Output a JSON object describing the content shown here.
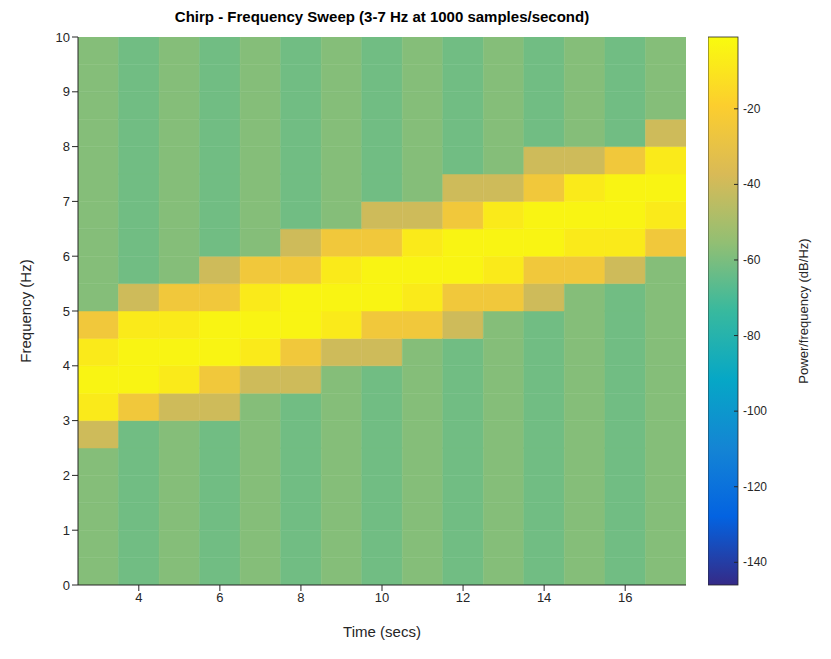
{
  "chart_data": {
    "type": "heatmap",
    "title": "Chirp - Frequency Sweep (3-7 Hz at 1000 samples/second)",
    "xlabel": "Time (secs)",
    "ylabel": "Frequency (Hz)",
    "xlim": [
      2.5,
      17.5
    ],
    "xticks": [
      4,
      6,
      8,
      10,
      12,
      14,
      16
    ],
    "ylim": [
      0,
      10
    ],
    "yticks": [
      0,
      1,
      2,
      3,
      4,
      5,
      6,
      7,
      8,
      9,
      10
    ],
    "colorbar": {
      "label": "Power/frequency (dB/Hz)",
      "range": [
        -146,
        -1
      ],
      "ticks": [
        -140,
        -120,
        -100,
        -80,
        -60,
        -40,
        -20
      ]
    },
    "cells": {
      "x": [
        3,
        4,
        5,
        6,
        7,
        8,
        9,
        10,
        11,
        12,
        13,
        14,
        15,
        16,
        17
      ],
      "y": [
        0.25,
        0.75,
        1.25,
        1.75,
        2.25,
        2.75,
        3.25,
        3.75,
        4.25,
        4.75,
        5.25,
        5.75,
        6.25,
        6.75,
        7.25,
        7.75,
        8.25,
        8.75,
        9.25,
        9.75
      ],
      "values": [
        [
          -58,
          -58,
          -58,
          -58,
          -58,
          -40,
          -8,
          -4,
          -8,
          -25,
          -58,
          -58,
          -58,
          -58,
          -58,
          -58,
          -58,
          -58,
          -58,
          -58
        ],
        [
          -62,
          -62,
          -62,
          -62,
          -62,
          -62,
          -25,
          -4,
          -4,
          -8,
          -40,
          -62,
          -62,
          -62,
          -62,
          -62,
          -62,
          -62,
          -62,
          -62
        ],
        [
          -58,
          -58,
          -58,
          -58,
          -58,
          -58,
          -40,
          -8,
          -4,
          -8,
          -25,
          -58,
          -58,
          -58,
          -58,
          -58,
          -58,
          -58,
          -58,
          -58
        ],
        [
          -62,
          -62,
          -62,
          -62,
          -62,
          -62,
          -40,
          -25,
          -4,
          -4,
          -25,
          -40,
          -62,
          -62,
          -62,
          -62,
          -62,
          -62,
          -62,
          -62
        ],
        [
          -58,
          -58,
          -58,
          -58,
          -58,
          -58,
          -58,
          -40,
          -8,
          -4,
          -8,
          -25,
          -58,
          -58,
          -58,
          -58,
          -58,
          -58,
          -58,
          -58
        ],
        [
          -62,
          -62,
          -62,
          -62,
          -62,
          -62,
          -62,
          -40,
          -25,
          -4,
          -4,
          -25,
          -40,
          -62,
          -62,
          -62,
          -62,
          -62,
          -62,
          -62
        ],
        [
          -58,
          -58,
          -58,
          -58,
          -58,
          -58,
          -58,
          -58,
          -40,
          -8,
          -4,
          -8,
          -25,
          -58,
          -58,
          -58,
          -58,
          -58,
          -58,
          -58
        ],
        [
          -62,
          -62,
          -62,
          -62,
          -62,
          -62,
          -62,
          -62,
          -40,
          -25,
          -4,
          -4,
          -25,
          -40,
          -62,
          -62,
          -62,
          -62,
          -62,
          -62
        ],
        [
          -58,
          -58,
          -58,
          -58,
          -58,
          -58,
          -58,
          -58,
          -58,
          -25,
          -8,
          -4,
          -8,
          -40,
          -58,
          -58,
          -58,
          -58,
          -58,
          -58
        ],
        [
          -62,
          -62,
          -62,
          -62,
          -62,
          -62,
          -62,
          -62,
          -62,
          -40,
          -25,
          -4,
          -4,
          -25,
          -40,
          -62,
          -62,
          -62,
          -62,
          -62
        ],
        [
          -58,
          -58,
          -58,
          -58,
          -58,
          -58,
          -58,
          -58,
          -58,
          -58,
          -25,
          -8,
          -4,
          -8,
          -40,
          -58,
          -58,
          -58,
          -58,
          -58
        ],
        [
          -62,
          -62,
          -62,
          -62,
          -62,
          -62,
          -62,
          -62,
          -62,
          -62,
          -40,
          -25,
          -4,
          -4,
          -25,
          -40,
          -62,
          -62,
          -62,
          -62
        ],
        [
          -58,
          -58,
          -58,
          -58,
          -58,
          -58,
          -58,
          -58,
          -58,
          -58,
          -58,
          -25,
          -8,
          -4,
          -8,
          -40,
          -58,
          -58,
          -58,
          -58
        ],
        [
          -62,
          -62,
          -62,
          -62,
          -62,
          -62,
          -62,
          -62,
          -62,
          -62,
          -62,
          -40,
          -8,
          -4,
          -4,
          -25,
          -62,
          -62,
          -62,
          -62
        ],
        [
          -58,
          -58,
          -58,
          -58,
          -58,
          -58,
          -58,
          -58,
          -58,
          -58,
          -58,
          -58,
          -25,
          -8,
          -4,
          -8,
          -40,
          -58,
          -58,
          -58
        ]
      ]
    }
  }
}
